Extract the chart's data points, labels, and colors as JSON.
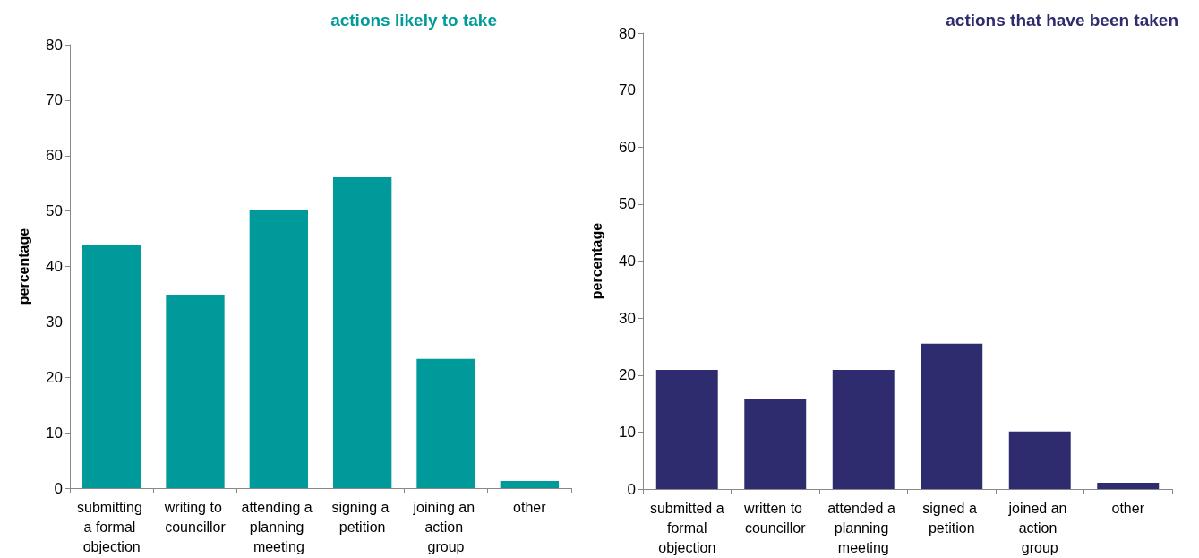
{
  "chart_data": [
    {
      "type": "bar",
      "title": "actions likely to take",
      "ylabel": "percentage",
      "categories": [
        "submitting a formal objection",
        "writing to councillor",
        "attending a planning meeting",
        "signing a petition",
        "joining an action group",
        "other"
      ],
      "series": [
        {
          "color": "#009a9a",
          "values": [
            43.8,
            34.9,
            50.1,
            56.1,
            23.3,
            1.3
          ]
        }
      ],
      "ylim": [
        0,
        80
      ],
      "yticks": [
        0,
        10,
        20,
        30,
        40,
        50,
        60,
        70,
        80
      ],
      "grid": false
    },
    {
      "type": "bar",
      "title": "actions that have been taken",
      "ylabel": "percentage",
      "categories": [
        "submitted a formal objection",
        "written to councillor",
        "attended a planning meeting",
        "signed a petition",
        "joined an action group",
        "other"
      ],
      "series": [
        {
          "color": "#2e2b6e",
          "values": [
            20.9,
            15.7,
            20.9,
            25.5,
            10.1,
            1.1
          ]
        }
      ],
      "ylim": [
        0,
        80
      ],
      "yticks": [
        0,
        10,
        20,
        30,
        40,
        50,
        60,
        70,
        80
      ],
      "grid": false
    }
  ]
}
